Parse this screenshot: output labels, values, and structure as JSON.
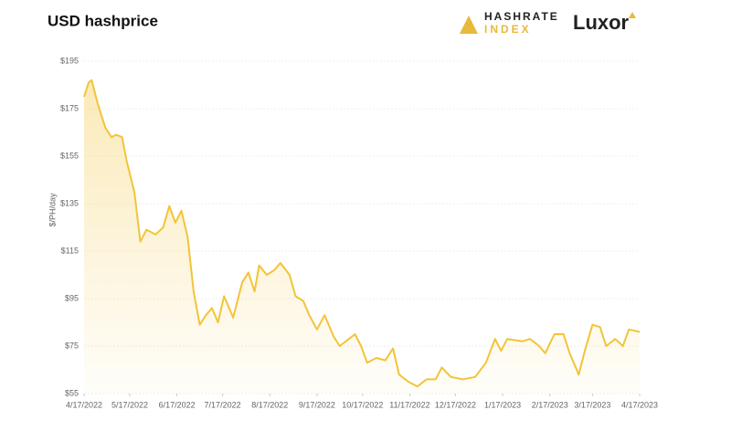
{
  "brand": {
    "name_line1": "HASHRATE",
    "name_line2": "INDEX",
    "partner": "Luxor"
  },
  "chart_data": {
    "type": "area",
    "title": "USD hashprice",
    "y_label": "$/PH/day",
    "color": "#f2c438",
    "grid": true,
    "xlim": [
      "2022-04-17",
      "2023-04-17"
    ],
    "xticks": [
      {
        "value": "2022-04-17",
        "label": "4/17/2022"
      },
      {
        "value": "2022-05-17",
        "label": "5/17/2022"
      },
      {
        "value": "2022-06-17",
        "label": "6/17/2022"
      },
      {
        "value": "2022-07-17",
        "label": "7/17/2022"
      },
      {
        "value": "2022-08-17",
        "label": "8/17/2022"
      },
      {
        "value": "2022-09-17",
        "label": "9/17/2022"
      },
      {
        "value": "2022-10-17",
        "label": "10/17/2022"
      },
      {
        "value": "2022-11-17",
        "label": "11/17/2022"
      },
      {
        "value": "2022-12-17",
        "label": "12/17/2022"
      },
      {
        "value": "2023-01-17",
        "label": "1/17/2023"
      },
      {
        "value": "2023-02-17",
        "label": "2/17/2023"
      },
      {
        "value": "2023-03-17",
        "label": "3/17/2023"
      },
      {
        "value": "2023-04-17",
        "label": "4/17/2023"
      }
    ],
    "ylim": [
      55,
      195
    ],
    "yticks": [
      {
        "value": 55,
        "label": "$55"
      },
      {
        "value": 75,
        "label": "$75"
      },
      {
        "value": 95,
        "label": "$95"
      },
      {
        "value": 115,
        "label": "$115"
      },
      {
        "value": 135,
        "label": "$135"
      },
      {
        "value": 155,
        "label": "$155"
      },
      {
        "value": 175,
        "label": "$175"
      },
      {
        "value": 195,
        "label": "$195"
      }
    ],
    "series": [
      {
        "name": "USD hashprice",
        "color": "#f2c438",
        "x": [
          "2022-04-17",
          "2022-04-20",
          "2022-04-22",
          "2022-04-26",
          "2022-05-01",
          "2022-05-05",
          "2022-05-08",
          "2022-05-12",
          "2022-05-15",
          "2022-05-20",
          "2022-05-24",
          "2022-05-28",
          "2022-06-03",
          "2022-06-08",
          "2022-06-12",
          "2022-06-16",
          "2022-06-20",
          "2022-06-24",
          "2022-06-28",
          "2022-07-02",
          "2022-07-06",
          "2022-07-10",
          "2022-07-14",
          "2022-07-18",
          "2022-07-24",
          "2022-07-30",
          "2022-08-03",
          "2022-08-07",
          "2022-08-10",
          "2022-08-15",
          "2022-08-20",
          "2022-08-24",
          "2022-08-30",
          "2022-09-03",
          "2022-09-08",
          "2022-09-12",
          "2022-09-17",
          "2022-09-22",
          "2022-09-28",
          "2022-10-02",
          "2022-10-08",
          "2022-10-12",
          "2022-10-16",
          "2022-10-20",
          "2022-10-26",
          "2022-11-01",
          "2022-11-06",
          "2022-11-10",
          "2022-11-16",
          "2022-11-22",
          "2022-11-28",
          "2022-12-04",
          "2022-12-08",
          "2022-12-14",
          "2022-12-22",
          "2022-12-30",
          "2023-01-06",
          "2023-01-12",
          "2023-01-16",
          "2023-01-20",
          "2023-01-30",
          "2023-02-04",
          "2023-02-10",
          "2023-02-14",
          "2023-02-20",
          "2023-02-26",
          "2023-03-02",
          "2023-03-08",
          "2023-03-12",
          "2023-03-17",
          "2023-03-22",
          "2023-03-26",
          "2023-04-01",
          "2023-04-06",
          "2023-04-10",
          "2023-04-17"
        ],
        "values": [
          180,
          186,
          187,
          177,
          167,
          163,
          164,
          163,
          153,
          140,
          119,
          124,
          122,
          125,
          134,
          127,
          132,
          121,
          98,
          84,
          88,
          91,
          85,
          96,
          87,
          102,
          106,
          98,
          109,
          105,
          107,
          110,
          105,
          96,
          94,
          88,
          82,
          88,
          79,
          75,
          78,
          80,
          75,
          68,
          70,
          69,
          74,
          63,
          60,
          58,
          61,
          61,
          66,
          62,
          61,
          62,
          68,
          78,
          73,
          78,
          77,
          78,
          75,
          72,
          80,
          80,
          72,
          63,
          73,
          84,
          83,
          75,
          78,
          75,
          82,
          81
        ]
      }
    ]
  }
}
